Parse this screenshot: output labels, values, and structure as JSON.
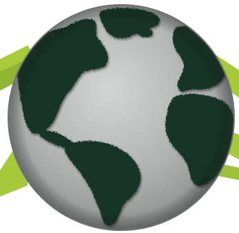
{
  "image": {
    "subject": "globe",
    "colors": {
      "background": "#ffffff",
      "ocean": "#a8acab",
      "ocean_light": "#cfd2d1",
      "ocean_dark": "#7f8483",
      "land": "#173626",
      "land_shadow": "#0c1f15",
      "rim": "#6f7473",
      "stripe": "#9fc63a",
      "stripe_dark": "#7faa2c"
    }
  }
}
